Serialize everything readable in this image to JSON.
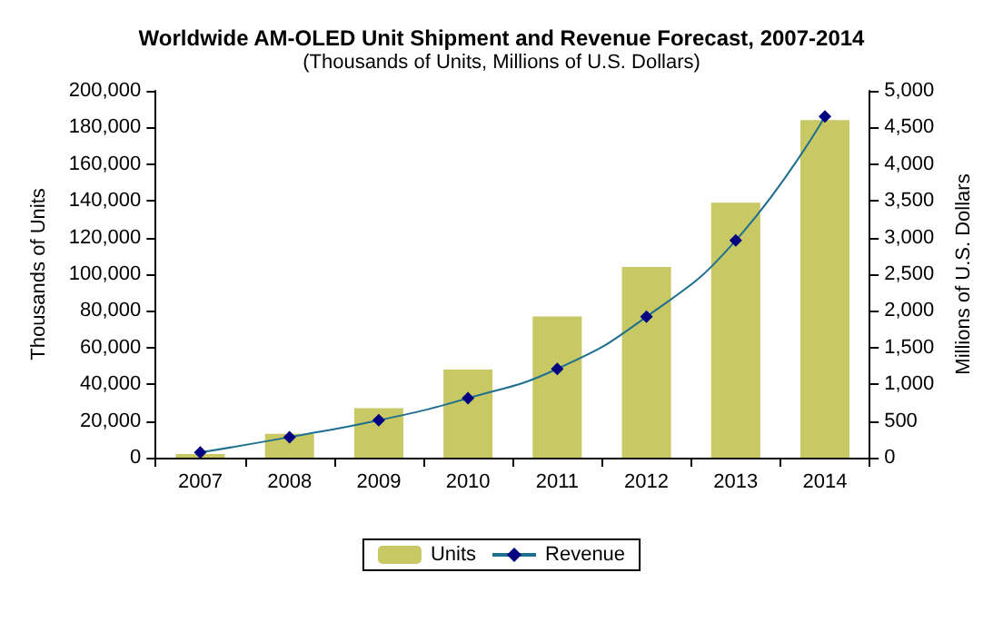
{
  "chart_data": {
    "type": "bar",
    "title": "Worldwide AM-OLED Unit Shipment and Revenue Forecast, 2007-2014",
    "subtitle": "(Thousands of Units, Millions of U.S. Dollars)",
    "ylabel": "Thousands of Units",
    "y2label": "Millions of U.S. Dollars",
    "categories": [
      "2007",
      "2008",
      "2009",
      "2010",
      "2011",
      "2012",
      "2013",
      "2014"
    ],
    "series": [
      {
        "name": "Units",
        "color": "#c8c864",
        "values": [
          2000,
          13000,
          27000,
          48000,
          77000,
          104000,
          139000,
          184000
        ]
      },
      {
        "name": "Revenue",
        "type": "line",
        "axis": "y2",
        "color": "#000080",
        "marker": "diamond",
        "values": [
          70,
          280,
          510,
          810,
          1210,
          1920,
          2960,
          4650
        ]
      }
    ],
    "ylim": [
      0,
      200000
    ],
    "yticks": [
      {
        "value": 0,
        "label": "0"
      },
      {
        "value": 20000,
        "label": "20,000"
      },
      {
        "value": 40000,
        "label": "40,000"
      },
      {
        "value": 60000,
        "label": "60,000"
      },
      {
        "value": 80000,
        "label": "80,000"
      },
      {
        "value": 100000,
        "label": "100,000"
      },
      {
        "value": 120000,
        "label": "120,000"
      },
      {
        "value": 140000,
        "label": "140,000"
      },
      {
        "value": 160000,
        "label": "160,000"
      },
      {
        "value": 180000,
        "label": "180,000"
      },
      {
        "value": 200000,
        "label": "200,000"
      }
    ],
    "y2lim": [
      0,
      5000
    ],
    "y2ticks": [
      {
        "value": 0,
        "label": "0"
      },
      {
        "value": 500,
        "label": "500"
      },
      {
        "value": 1000,
        "label": "1,000"
      },
      {
        "value": 1500,
        "label": "1,500"
      },
      {
        "value": 2000,
        "label": "2,000"
      },
      {
        "value": 2500,
        "label": "2,500"
      },
      {
        "value": 3000,
        "label": "3,000"
      },
      {
        "value": 3500,
        "label": "3,500"
      },
      {
        "value": 4000,
        "label": "4,000"
      },
      {
        "value": 4500,
        "label": "4,500"
      },
      {
        "value": 5000,
        "label": "5,000"
      }
    ],
    "grid": false,
    "legend": "bottom"
  }
}
